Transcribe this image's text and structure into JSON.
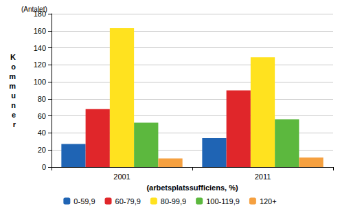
{
  "chart_data": {
    "type": "bar",
    "annotations": [
      "(Antalet)"
    ],
    "ylabel": "Kommuner",
    "xlabel": "(arbetsplatssufficiens, %)",
    "categories": [
      "2001",
      "2011"
    ],
    "series": [
      {
        "name": "0-59,9",
        "color": "#1f64b4",
        "values": [
          27,
          34
        ]
      },
      {
        "name": "60-79,9",
        "color": "#e0262a",
        "values": [
          68,
          90
        ]
      },
      {
        "name": "80-99,9",
        "color": "#ffe21f",
        "values": [
          163,
          129
        ]
      },
      {
        "name": "100-119,9",
        "color": "#5cb83e",
        "values": [
          52,
          56
        ]
      },
      {
        "name": "120+",
        "color": "#f5a040",
        "values": [
          10,
          11
        ]
      }
    ],
    "ylim": [
      0,
      180
    ],
    "yticks": [
      0,
      20,
      40,
      60,
      80,
      100,
      120,
      140,
      160,
      180
    ],
    "grid": true,
    "legend": "bottom"
  }
}
